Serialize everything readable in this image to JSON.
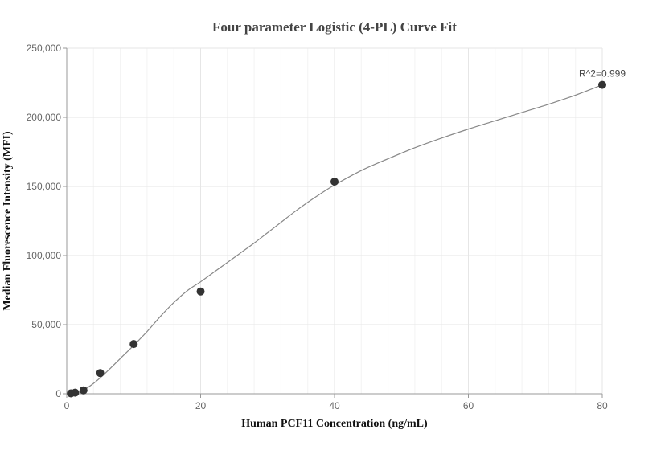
{
  "chart_data": {
    "type": "scatter",
    "title": "Four parameter Logistic (4-PL) Curve Fit",
    "xlabel": "Human PCF11 Concentration (ng/mL)",
    "ylabel": "Median Fluorescence Intensity (MFI)",
    "xlim": [
      0,
      80
    ],
    "ylim": [
      0,
      250000
    ],
    "x_ticks": [
      0,
      20,
      40,
      60,
      80
    ],
    "y_ticks": [
      0,
      50000,
      100000,
      150000,
      200000,
      250000
    ],
    "x_tick_labels": [
      "0",
      "20",
      "40",
      "60",
      "80"
    ],
    "y_tick_labels": [
      "0",
      "50,000",
      "100,000",
      "150,000",
      "200,000",
      "250,000"
    ],
    "grid": true,
    "series": [
      {
        "x": [
          0.625,
          1.25,
          2.5,
          5,
          10,
          20,
          40,
          80
        ],
        "y": [
          300,
          800,
          2500,
          15000,
          36000,
          74000,
          153500,
          223500
        ],
        "color": "#333333"
      }
    ],
    "fit_curve": {
      "x": [
        0,
        2,
        4,
        6,
        8,
        10,
        12,
        14,
        16,
        18,
        20,
        22,
        24,
        26,
        28,
        30,
        32,
        34,
        36,
        38,
        40,
        44,
        48,
        52,
        56,
        60,
        64,
        68,
        72,
        76,
        80
      ],
      "y": [
        0,
        1500,
        7500,
        16000,
        25500,
        35000,
        45000,
        56000,
        66000,
        74500,
        81000,
        88000,
        95000,
        102000,
        109000,
        116500,
        124000,
        131500,
        138500,
        145000,
        151000,
        161500,
        170000,
        178000,
        185000,
        191500,
        197500,
        203500,
        209500,
        216000,
        223500
      ],
      "color": "#888888"
    },
    "annotations": [
      {
        "text": "R^2=0.999",
        "x": 80,
        "y": 223500
      }
    ]
  }
}
